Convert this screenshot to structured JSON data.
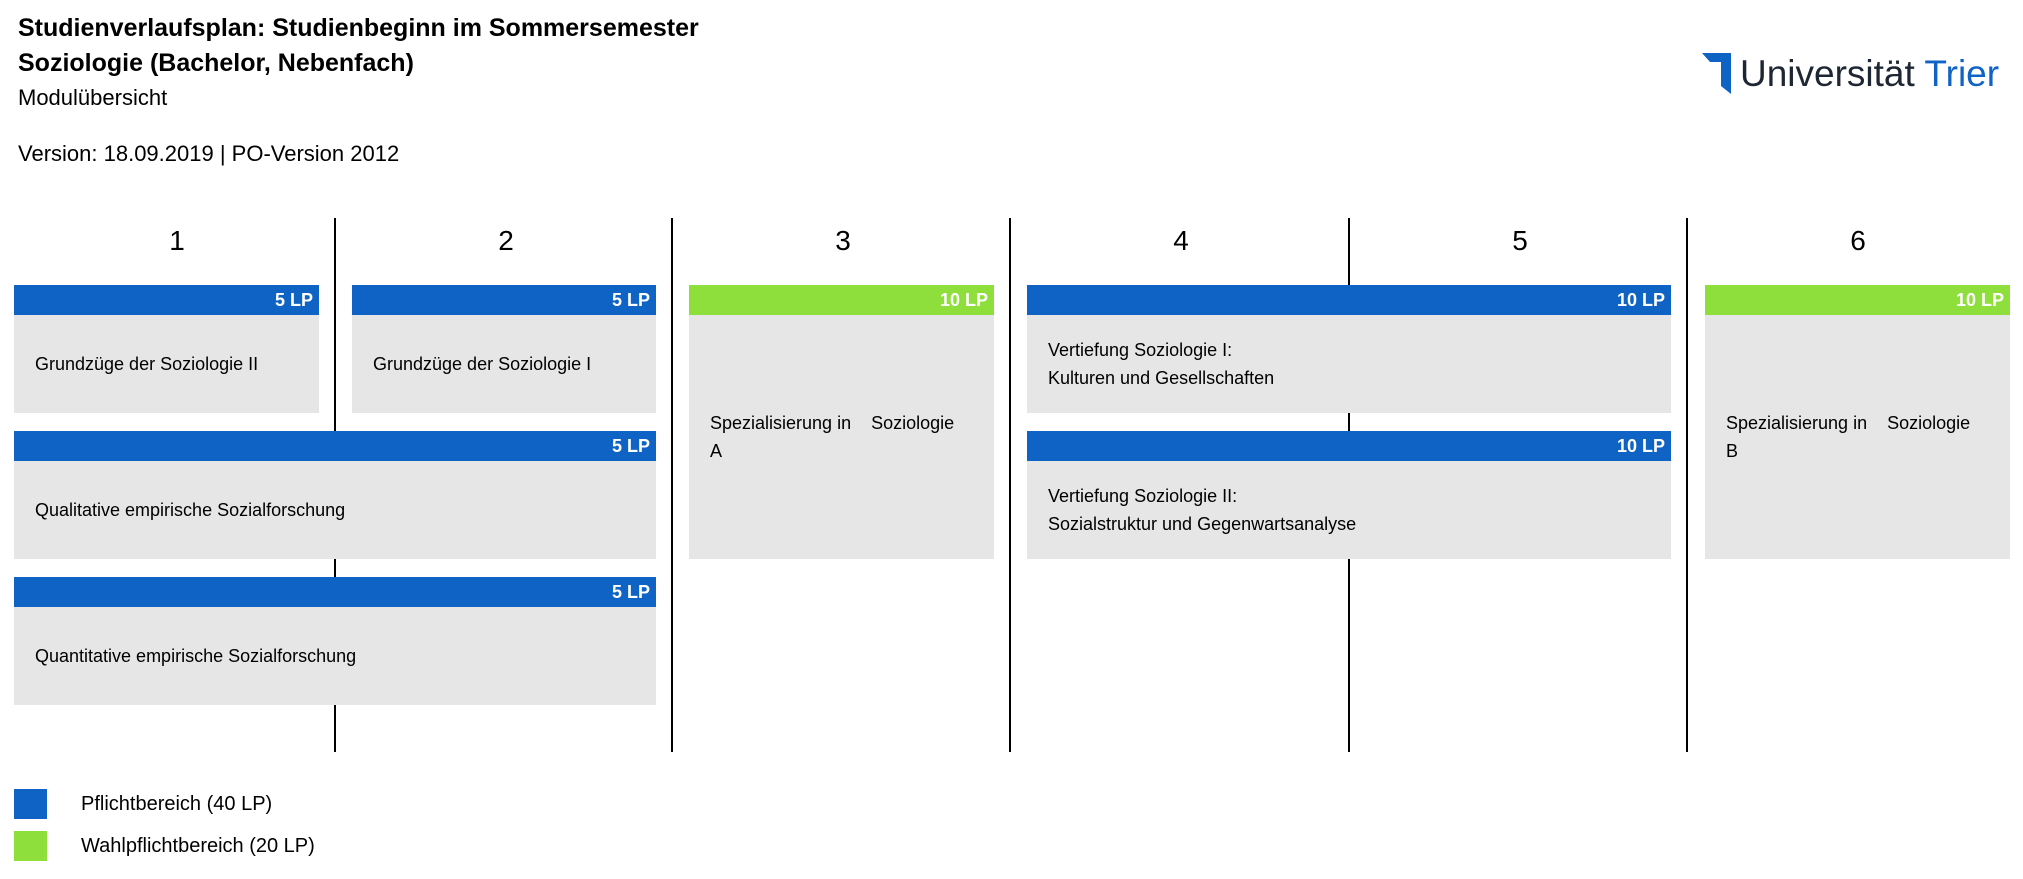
{
  "header": {
    "title_line1": "Studienverlaufsplan: Studienbeginn im Sommersemester",
    "title_line2": "Soziologie (Bachelor, Nebenfach)",
    "subtitle": "Modulübersicht",
    "version": "Version: 18.09.2019 |  PO-Version 2012"
  },
  "logo": {
    "name_part1": "Universität",
    "name_part2": "Trier"
  },
  "semesters": [
    "1",
    "2",
    "3",
    "4",
    "5",
    "6"
  ],
  "modules": [
    {
      "lp": "5 LP",
      "category": "Pflichtbereich",
      "line1": "Grundzüge der Soziologie II",
      "line2": ""
    },
    {
      "lp": "5 LP",
      "category": "Pflichtbereich",
      "line1": "Grundzüge der Soziologie I",
      "line2": ""
    },
    {
      "lp": "5 LP",
      "category": "Pflichtbereich",
      "line1": "Qualitative empirische Sozialforschung",
      "line2": ""
    },
    {
      "lp": "5 LP",
      "category": "Pflichtbereich",
      "line1": "Quantitative empirische Sozialforschung",
      "line2": ""
    },
    {
      "lp": "10 LP",
      "category": "Wahlpflichtbereich",
      "line1": "Spezialisierung in    Soziologie",
      "line2": "A"
    },
    {
      "lp": "10 LP",
      "category": "Pflichtbereich",
      "line1": "Vertiefung Soziologie I:",
      "line2": "Kulturen und Gesellschaften"
    },
    {
      "lp": "10 LP",
      "category": "Pflichtbereich",
      "line1": "Vertiefung Soziologie II:",
      "line2": "Sozialstruktur und Gegenwartsanalyse"
    },
    {
      "lp": "10 LP",
      "category": "Wahlpflichtbereich",
      "line1": "Spezialisierung in    Soziologie",
      "line2": "B"
    }
  ],
  "legend": [
    {
      "label": "Pflichtbereich (40 LP)",
      "color": "#0e63c4"
    },
    {
      "label": "Wahlpflichtbereich (20 LP)",
      "color": "#8fdf3c"
    }
  ],
  "colors": {
    "pflicht": "#0e63c4",
    "wahlpflicht": "#8fdf3c",
    "module_bg": "#e6e6e6",
    "logo_dark": "#1f2633",
    "logo_blue": "#0e63c4"
  }
}
